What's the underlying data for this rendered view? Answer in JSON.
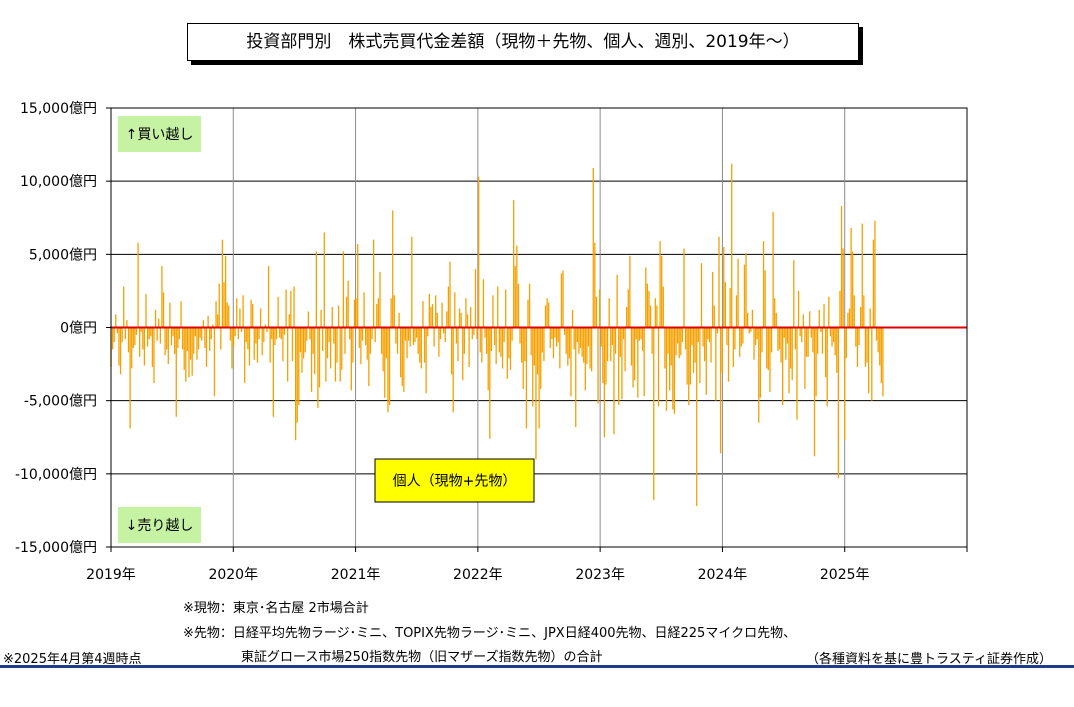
{
  "title": "投資部門別　株式売買代金差額（現物＋先物、個人、週別、2019年〜）",
  "notes": {
    "genbutsu": "※現物：東京･名古屋 2市場合計",
    "sakimono_line1": "※先物：日経平均先物ラージ･ミニ、TOPIX先物ラージ･ミニ、JPX日経400先物、日経225マイクロ先物、",
    "sakimono_line2": "東証グロース市場250指数先物（旧マザーズ指数先物）の合計",
    "as_of": "※2025年4月第4週時点",
    "source": "（各種資料を基に豊トラスティ証券作成）"
  },
  "chart_data": {
    "type": "bar",
    "title": "投資部門別　株式売買代金差額（現物＋先物、個人、週別、2019年〜）",
    "ylim": [
      -15000,
      15000
    ],
    "yticks": [
      15000,
      10000,
      5000,
      0,
      -5000,
      -10000,
      -15000
    ],
    "ytick_labels": [
      "15,000億円",
      "10,000億円",
      "5,000億円",
      "0億円",
      "-5,000億円",
      "-10,000億円",
      "-15,000億円"
    ],
    "xtick_labels": [
      "2019年",
      "2020年",
      "2021年",
      "2022年",
      "2023年",
      "2024年",
      "2025年"
    ],
    "x_start": "2019-01",
    "x_end": "2025-04",
    "x_axis_end_year": 2026,
    "grid": true,
    "bar_color": "#f5a000",
    "zero_line_color": "#e00000",
    "label_buy": "↑買い越し",
    "label_sell": "↓売り越し",
    "series_label": "個人（現物+先物）",
    "series": [
      {
        "name": "個人（現物+先物）",
        "values": [
          -2700,
          -1500,
          -1000,
          900,
          -400,
          -2600,
          -3200,
          -1000,
          2800,
          -800,
          500,
          -1700,
          -6900,
          -2800,
          -1400,
          -1200,
          -500,
          5800,
          -2000,
          -300,
          -1500,
          -2600,
          2300,
          -1300,
          -800,
          -600,
          -2700,
          -3800,
          1200,
          -900,
          600,
          -1100,
          4200,
          2400,
          -1900,
          -1500,
          -2500,
          1700,
          -1200,
          -600,
          -1800,
          -6100,
          -1400,
          -800,
          1800,
          -1500,
          -2900,
          -3700,
          -1600,
          -3400,
          -2200,
          -3300,
          -1800,
          -600,
          -2200,
          -1500,
          -700,
          -900,
          500,
          -1400,
          -2700,
          800,
          -1600,
          -800,
          200,
          -4700,
          1800,
          900,
          3000,
          -1500,
          6000,
          3100,
          4900,
          1700,
          1500,
          -900,
          -2800,
          -1300,
          -600,
          2000,
          -800,
          1300,
          -300,
          2200,
          -3800,
          -1000,
          -1500,
          -2600,
          1900,
          1600,
          -2200,
          -1100,
          -2400,
          -800,
          1300,
          -1900,
          -1000,
          200,
          -300,
          4200,
          -2400,
          -800,
          -6100,
          -1200,
          -800,
          2100,
          -700,
          -800,
          -2300,
          -500,
          2600,
          -3700,
          900,
          2500,
          -2300,
          2800,
          -7700,
          -6500,
          -5300,
          -1700,
          -3100,
          -2100,
          -1700,
          -900,
          1100,
          -800,
          -4400,
          -1800,
          -3200,
          5200,
          -5500,
          -4100,
          1200,
          -1600,
          6500,
          -3700,
          -2100,
          -1000,
          -2800,
          1400,
          -1100,
          -3700,
          -2400,
          1500,
          -3700,
          -2900,
          5200,
          -1800,
          2100,
          3200,
          -800,
          -4300,
          -2400,
          1900,
          2000,
          5700,
          -1400,
          -2500,
          -900,
          2400,
          -1200,
          -2200,
          -4000,
          -1800,
          -800,
          6000,
          -1000,
          1600,
          2000,
          3800,
          -1800,
          -3000,
          -4800,
          -2100,
          -5800,
          -5300,
          2000,
          8000,
          2200,
          -1100,
          -1800,
          1000,
          -3400,
          -4000,
          -4400,
          -900,
          -2100,
          -900,
          -1300,
          6200,
          -1200,
          -1000,
          -700,
          -1800,
          -2400,
          -2800,
          1800,
          -2400,
          -4500,
          -600,
          2300,
          1400,
          1600,
          -1300,
          2200,
          1000,
          -2000,
          -800,
          1700,
          -400,
          -1000,
          1100,
          2800,
          4500,
          -3200,
          -5800,
          2400,
          -1100,
          -2300,
          1300,
          1000,
          -3600,
          -1800,
          2000,
          900,
          -2700,
          1400,
          -800,
          -500,
          4000,
          -800,
          10300,
          -1700,
          -2400,
          3300,
          -700,
          -1800,
          -4300,
          -7600,
          -1600,
          2200,
          -1200,
          -2500,
          2800,
          -1700,
          -2000,
          -2800,
          -1000,
          2600,
          -3500,
          -2100,
          -2900,
          -900,
          8700,
          4200,
          5600,
          3000,
          -1100,
          -2400,
          -4200,
          -2300,
          -6900,
          1900,
          3000,
          -1900,
          -5400,
          -2600,
          -9000,
          -3200,
          -6900,
          -4200,
          -1700,
          -2300,
          1500,
          2000,
          1700,
          -1400,
          -800,
          -2100,
          -700,
          -1300,
          -1000,
          -2800,
          3700,
          3900,
          -500,
          -1800,
          -2600,
          -2100,
          -4700,
          1200,
          -1500,
          -6800,
          -1000,
          -1800,
          -1400,
          -2000,
          -2400,
          -4300,
          -2500,
          -1300,
          -2800,
          -3000,
          10900,
          5800,
          2100,
          -5200,
          2600,
          -1300,
          -3800,
          -7500,
          -3900,
          -2300,
          2000,
          -2300,
          -1200,
          -7300,
          -1800,
          3600,
          -5300,
          -2000,
          -4900,
          -800,
          -3000,
          1400,
          2600,
          4900,
          -2600,
          -4100,
          -3600,
          -800,
          -4800,
          -900,
          -800,
          -1600,
          -4700,
          4100,
          3000,
          2500,
          1500,
          -1800,
          -11800,
          2000,
          1500,
          -5400,
          5900,
          4900,
          2800,
          -2800,
          -5700,
          -1800,
          -4300,
          -2600,
          -5600,
          -5900,
          -1900,
          -1100,
          -2100,
          -1900,
          -1000,
          5400,
          -1500,
          -3900,
          -5300,
          -3900,
          -1200,
          -3100,
          -2400,
          -12200,
          -1000,
          -3800,
          4400,
          -1300,
          -2300,
          -4600,
          -800,
          -1000,
          -2400,
          3800,
          1500,
          -5000,
          -400,
          6200,
          -8600,
          -3100,
          5500,
          3100,
          -1200,
          -3700,
          2700,
          11200,
          -2700,
          -1500,
          2200,
          4700,
          -2000,
          -1300,
          -1100,
          4300,
          5100,
          1000,
          -400,
          -300,
          1200,
          -2200,
          -1200,
          -800,
          -6500,
          -4800,
          -1700,
          5900,
          3900,
          -2800,
          -2900,
          -4400,
          -1700,
          7900,
          2000,
          1000,
          -1600,
          -1500,
          -2400,
          -5300,
          -700,
          -2200,
          -1100,
          -4500,
          -2800,
          -3600,
          4600,
          -1500,
          -6300,
          2500,
          -600,
          -1000,
          900,
          -4200,
          -2000,
          -2000,
          1100,
          -700,
          -1700,
          -8800,
          -4700,
          -1800,
          1200,
          -300,
          -1800,
          1600,
          -3400,
          -5400,
          2100,
          -600,
          -1300,
          -1000,
          -1900,
          -3100,
          -10300,
          2500,
          8300,
          5400,
          -7700,
          -2100,
          1000,
          1300,
          6800,
          5200,
          2200,
          -1300,
          -2700,
          -1200,
          1400,
          7100,
          2200,
          -2700,
          -2400,
          -4500,
          1300,
          -5000,
          6000,
          7300,
          -900,
          -1700,
          -2600,
          -3800,
          -4700
        ]
      }
    ]
  }
}
